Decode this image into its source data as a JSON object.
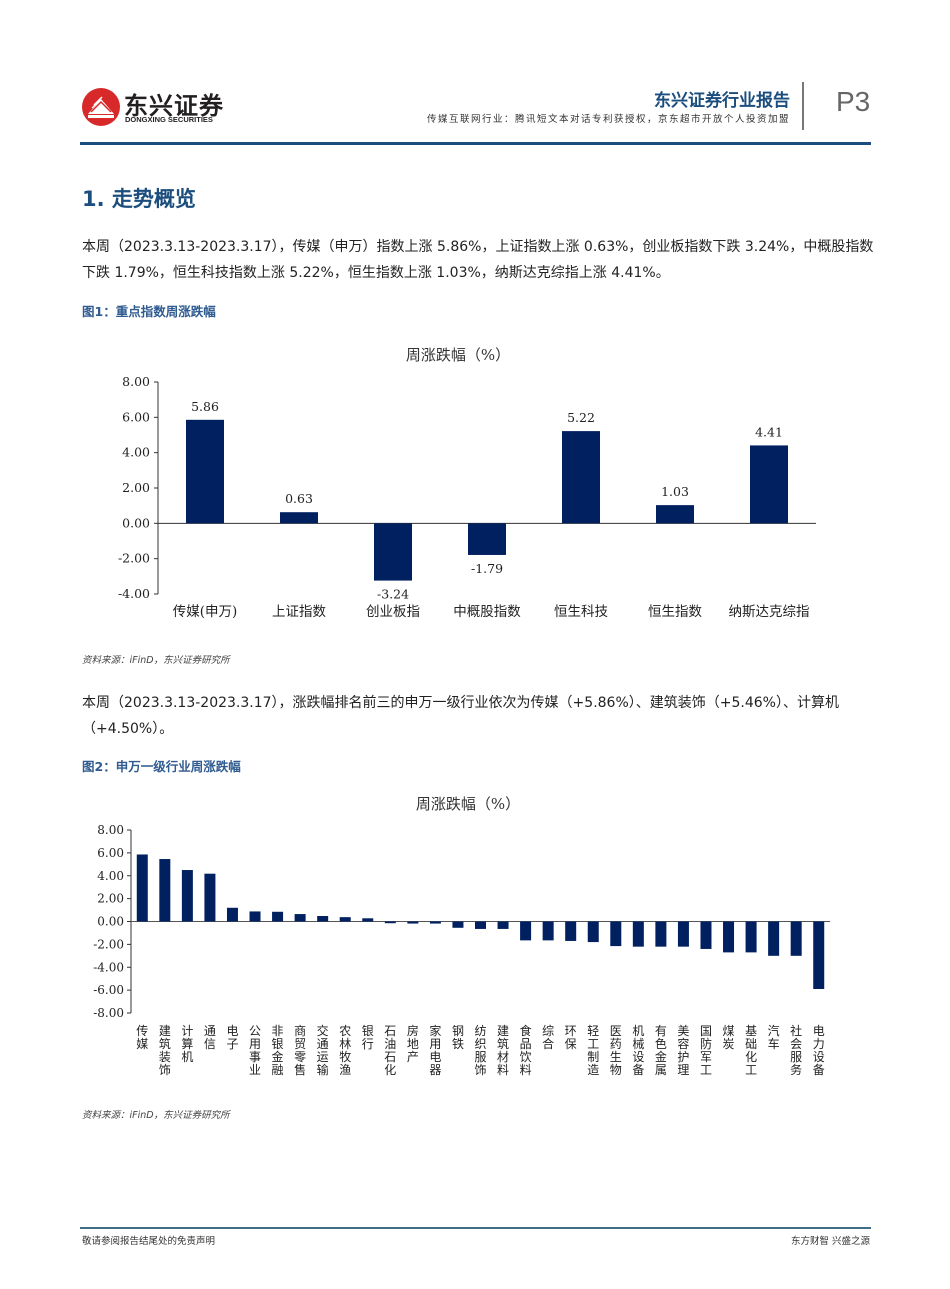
{
  "header": {
    "logo_cn": "东兴证券",
    "logo_en": "DONGXING SECURITIES",
    "report_type": "东兴证券行业报告",
    "subtitle": "传媒互联网行业：腾讯短文本对话专利获授权，京东超市开放个人投资加盟",
    "page": "P3"
  },
  "section": {
    "title": "1. 走势概览",
    "para1": "本周（2023.3.13-2023.3.17），传媒（申万）指数上涨 5.86%，上证指数上涨 0.63%，创业板指数下跌 3.24%，中概股指数下跌 1.79%，恒生科技指数上涨 5.22%，恒生指数上涨 1.03%，纳斯达克综指上涨 4.41%。",
    "fig1_title": "图1：重点指数周涨跌幅",
    "fig1_source": "资料来源：iFinD，东兴证券研究所",
    "para2": "本周（2023.3.13-2023.3.17），涨跌幅排名前三的申万一级行业依次为传媒（+5.86%）、建筑装饰（+5.46%）、计算机（+4.50%）。",
    "fig2_title": "图2：申万一级行业周涨跌幅",
    "fig2_source": "资料来源：iFinD，东兴证券研究所"
  },
  "footer": {
    "left": "敬请参阅报告结尾处的免责声明",
    "right": "东方财智 兴盛之源"
  },
  "colors": {
    "brand_blue": "#1b4e7e",
    "bar_navy": "#002060",
    "logo_red": "#d7282a"
  },
  "chart_data": [
    {
      "type": "bar",
      "title": "周涨跌幅（%）",
      "categories": [
        "传媒(申万)",
        "上证指数",
        "创业板指",
        "中概股指数",
        "恒生科技",
        "恒生指数",
        "纳斯达克综指"
      ],
      "values": [
        5.86,
        0.63,
        -3.24,
        -1.79,
        5.22,
        1.03,
        4.41
      ],
      "data_labels": [
        "5.86",
        "0.63",
        "-3.24",
        "-1.79",
        "5.22",
        "1.03",
        "4.41"
      ],
      "yticks": [
        "8.00",
        "6.00",
        "4.00",
        "2.00",
        "0.00",
        "-2.00",
        "-4.00"
      ],
      "ylim": [
        -4,
        8
      ],
      "xlabel": "",
      "ylabel": "",
      "grid": false,
      "legend": null
    },
    {
      "type": "bar",
      "title": "周涨跌幅（%）",
      "categories": [
        "传媒",
        "建筑装饰",
        "计算机",
        "通信",
        "电子",
        "公用事业",
        "非银金融",
        "商贸零售",
        "交通运输",
        "农林牧渔",
        "银行",
        "石油石化",
        "房地产",
        "家用电器",
        "钢铁",
        "纺织服饰",
        "建筑材料",
        "食品饮料",
        "综合",
        "环保",
        "轻工制造",
        "医药生物",
        "机械设备",
        "有色金属",
        "美容护理",
        "国防军工",
        "煤炭",
        "基础化工",
        "汽车",
        "社会服务",
        "电力设备"
      ],
      "values": [
        5.86,
        5.46,
        4.5,
        4.18,
        1.2,
        0.88,
        0.85,
        0.65,
        0.48,
        0.38,
        0.28,
        -0.15,
        -0.18,
        -0.18,
        -0.55,
        -0.65,
        -0.65,
        -1.65,
        -1.65,
        -1.7,
        -1.8,
        -2.15,
        -2.2,
        -2.2,
        -2.2,
        -2.4,
        -2.7,
        -2.7,
        -3.0,
        -3.0,
        -5.9
      ],
      "yticks": [
        "8.00",
        "6.00",
        "4.00",
        "2.00",
        "0.00",
        "-2.00",
        "-4.00",
        "-6.00",
        "-8.00"
      ],
      "ylim": [
        -8,
        8
      ],
      "xlabel": "",
      "ylabel": "",
      "grid": false,
      "legend": null
    }
  ]
}
